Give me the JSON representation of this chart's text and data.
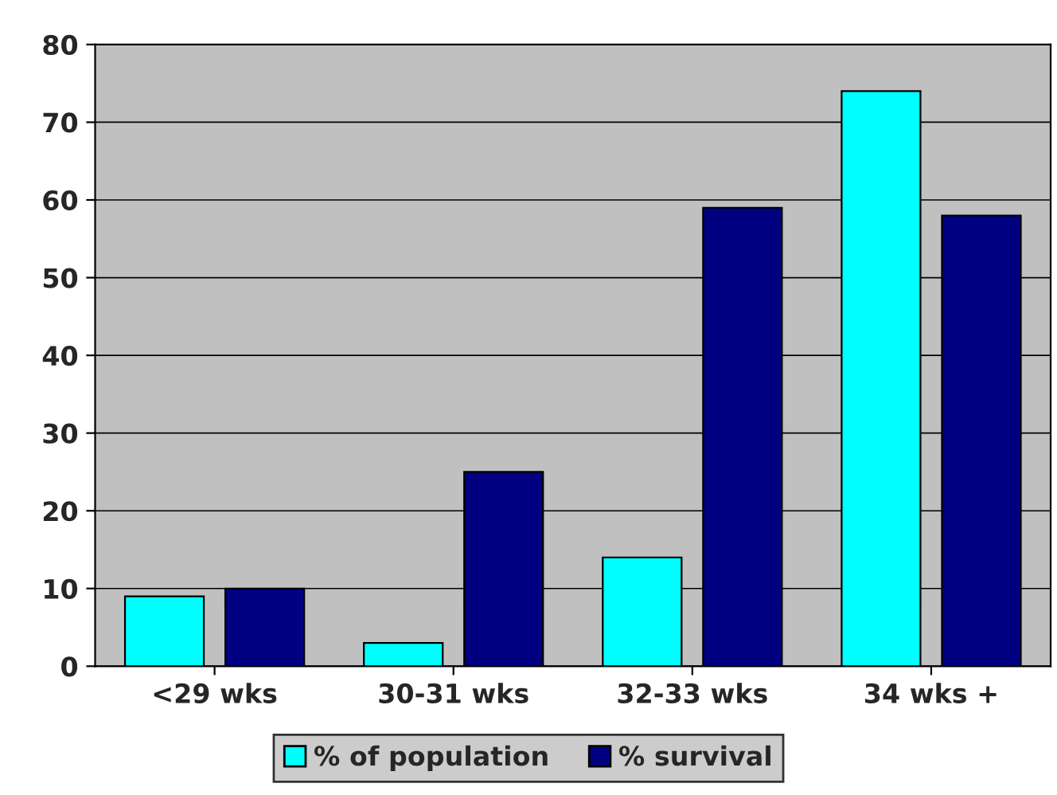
{
  "chart_data": {
    "type": "bar",
    "categories": [
      "<29 wks",
      "30-31 wks",
      "32-33 wks",
      "34 wks +"
    ],
    "series": [
      {
        "name": "% of population",
        "color": "#00ffff",
        "values": [
          9,
          3,
          14,
          74
        ]
      },
      {
        "name": "% survival",
        "color": "#000080",
        "values": [
          10,
          25,
          59,
          58
        ]
      }
    ],
    "ylim": [
      0,
      80
    ],
    "yticks": [
      0,
      10,
      20,
      30,
      40,
      50,
      60,
      70,
      80
    ],
    "grid": "y",
    "legend": "bottom"
  }
}
